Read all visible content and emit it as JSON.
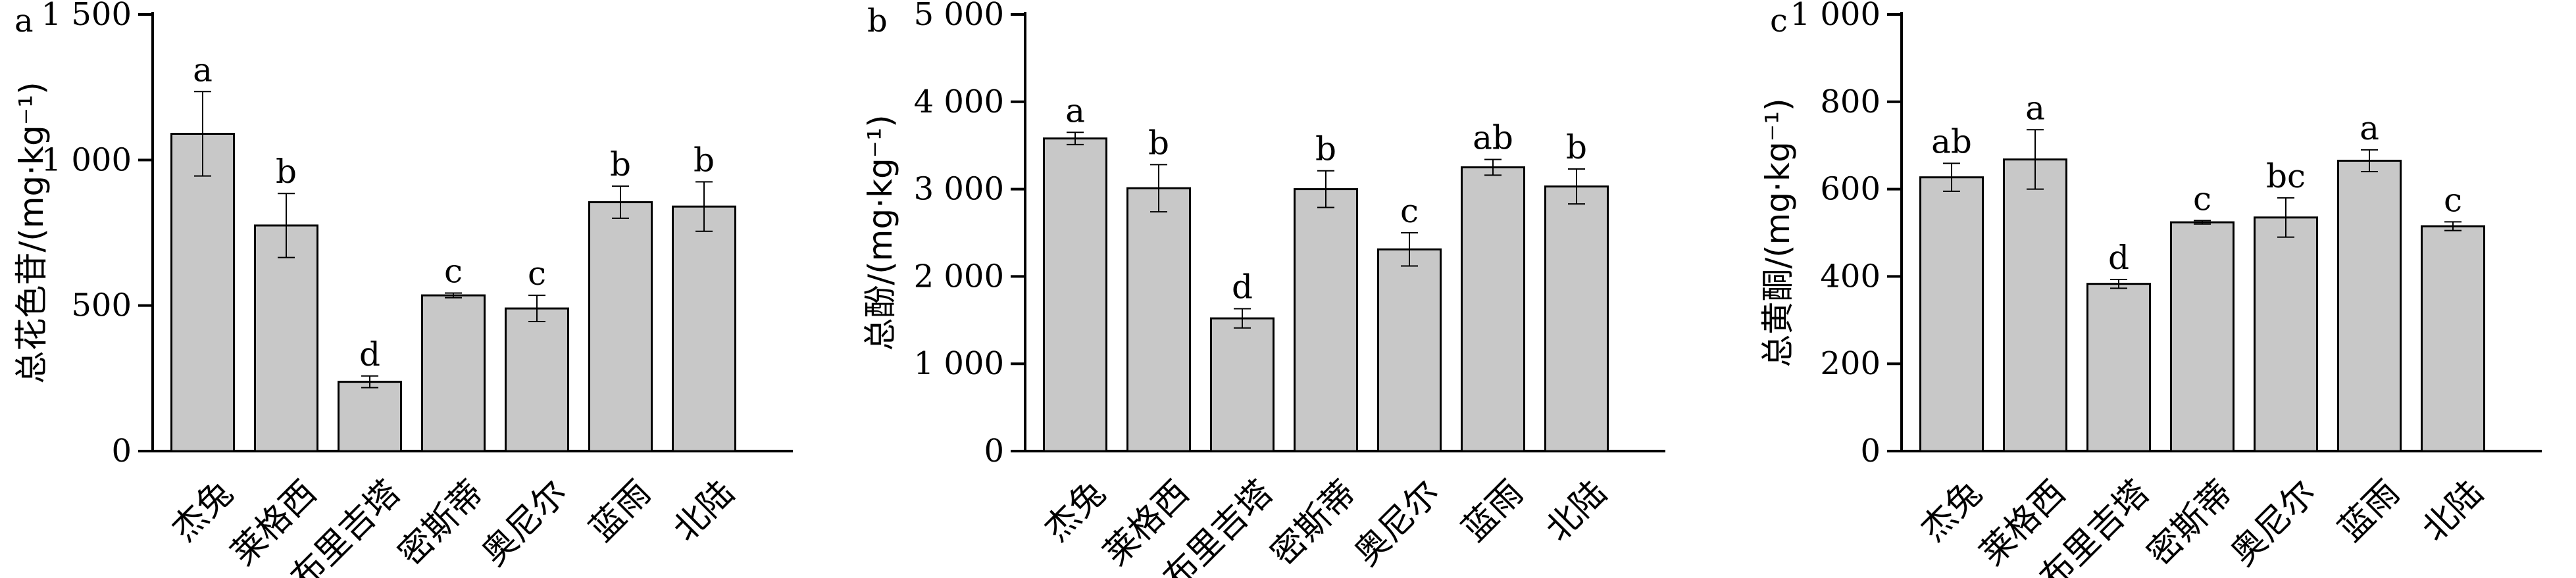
{
  "chart_data": [
    {
      "type": "bar",
      "panel": "a",
      "categories": [
        "杰兔",
        "莱格西",
        "布里吉塔",
        "密斯蒂",
        "奥尼尔",
        "蓝雨",
        "北陆"
      ],
      "values": [
        1090,
        775,
        238,
        535,
        490,
        855,
        840
      ],
      "errors": [
        145,
        110,
        20,
        8,
        45,
        55,
        85
      ],
      "significance": [
        "a",
        "b",
        "d",
        "c",
        "c",
        "b",
        "b"
      ],
      "ylabel": "总花色苷/(mg·kg⁻¹)",
      "ylim": [
        0,
        1500
      ],
      "yticks": [
        0,
        500,
        1000,
        1500
      ],
      "ytick_labels": [
        "0",
        "500",
        "1 000",
        "1 500"
      ],
      "bar_color": "#c8c8c8",
      "grid": false
    },
    {
      "type": "bar",
      "panel": "b",
      "categories": [
        "杰兔",
        "莱格西",
        "布里吉塔",
        "密斯蒂",
        "奥尼尔",
        "蓝雨",
        "北陆"
      ],
      "values": [
        3580,
        3010,
        1520,
        3000,
        2310,
        3250,
        3030
      ],
      "errors": [
        70,
        270,
        110,
        210,
        190,
        90,
        200
      ],
      "significance": [
        "a",
        "b",
        "d",
        "b",
        "c",
        "ab",
        "b"
      ],
      "ylabel": "总酚/(mg·kg⁻¹)",
      "ylim": [
        0,
        5000
      ],
      "yticks": [
        0,
        1000,
        2000,
        3000,
        4000,
        5000
      ],
      "ytick_labels": [
        "0",
        "1 000",
        "2 000",
        "3 000",
        "4 000",
        "5 000"
      ],
      "bar_color": "#c8c8c8",
      "grid": false
    },
    {
      "type": "bar",
      "panel": "c",
      "categories": [
        "杰兔",
        "莱格西",
        "布里吉塔",
        "密斯蒂",
        "奥尼尔",
        "蓝雨",
        "北陆"
      ],
      "values": [
        627,
        668,
        383,
        524,
        535,
        665,
        515
      ],
      "errors": [
        32,
        68,
        10,
        4,
        45,
        25,
        10
      ],
      "significance": [
        "ab",
        "a",
        "d",
        "c",
        "bc",
        "a",
        "c"
      ],
      "ylabel": "总黄酮/(mg·kg⁻¹)",
      "ylim": [
        0,
        1000
      ],
      "yticks": [
        0,
        200,
        400,
        600,
        800,
        1000
      ],
      "ytick_labels": [
        "0",
        "200",
        "400",
        "600",
        "800",
        "1 000"
      ],
      "bar_color": "#c8c8c8",
      "grid": false
    }
  ]
}
